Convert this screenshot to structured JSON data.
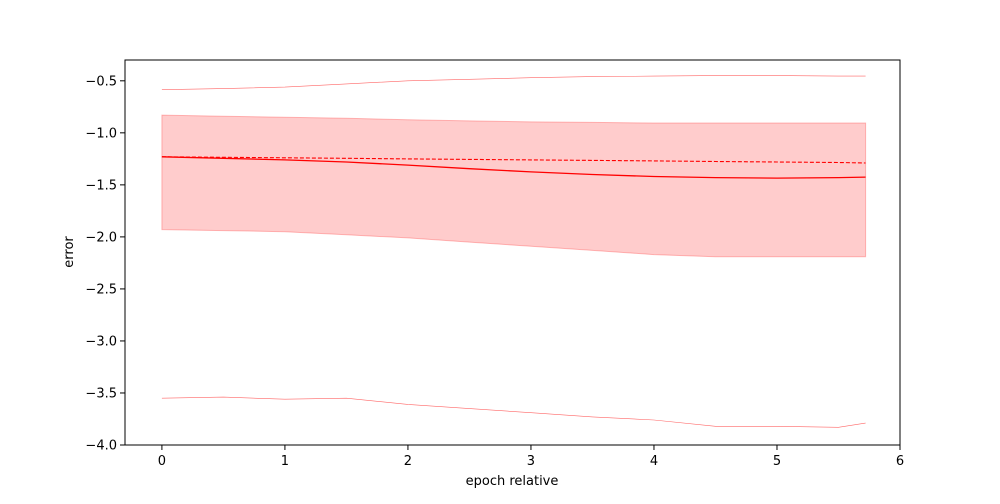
{
  "chart_data": {
    "type": "line",
    "title": "",
    "xlabel": "epoch relative",
    "ylabel": "error",
    "xlim": [
      -0.3,
      6.0
    ],
    "ylim": [
      -4.0,
      -0.3
    ],
    "xticks": [
      0,
      1,
      2,
      3,
      4,
      5,
      6
    ],
    "yticks": [
      -4.0,
      -3.5,
      -3.0,
      -2.5,
      -2.0,
      -1.5,
      -1.0,
      -0.5
    ],
    "xtick_labels": [
      "0",
      "1",
      "2",
      "3",
      "4",
      "5",
      "6"
    ],
    "ytick_labels": [
      "−4.0",
      "−3.5",
      "−3.0",
      "−2.5",
      "−2.0",
      "−1.5",
      "−1.0",
      "−0.5"
    ],
    "grid": false,
    "color": "#ff0000",
    "x": [
      0,
      0.5,
      1.0,
      1.5,
      2.0,
      2.5,
      3.0,
      3.5,
      4.0,
      4.5,
      5.0,
      5.5,
      5.72
    ],
    "series": [
      {
        "role": "mean",
        "style": "solid",
        "values": [
          -1.23,
          -1.245,
          -1.26,
          -1.28,
          -1.31,
          -1.345,
          -1.375,
          -1.4,
          -1.42,
          -1.43,
          -1.435,
          -1.43,
          -1.425
        ]
      },
      {
        "role": "reference",
        "style": "dashed",
        "values": [
          -1.23,
          -1.235,
          -1.24,
          -1.245,
          -1.25,
          -1.255,
          -1.26,
          -1.265,
          -1.27,
          -1.275,
          -1.28,
          -1.285,
          -1.29
        ]
      },
      {
        "role": "max",
        "style": "thin",
        "values": [
          -0.585,
          -0.575,
          -0.56,
          -0.53,
          -0.5,
          -0.485,
          -0.47,
          -0.46,
          -0.455,
          -0.45,
          -0.45,
          -0.455,
          -0.455
        ]
      },
      {
        "role": "min",
        "style": "thin",
        "values": [
          -3.55,
          -3.54,
          -3.56,
          -3.55,
          -3.61,
          -3.65,
          -3.69,
          -3.73,
          -3.76,
          -3.82,
          -3.82,
          -3.83,
          -3.79
        ]
      }
    ],
    "band": {
      "upper": [
        -0.83,
        -0.84,
        -0.85,
        -0.86,
        -0.875,
        -0.885,
        -0.895,
        -0.9,
        -0.905,
        -0.905,
        -0.905,
        -0.905,
        -0.905
      ],
      "lower": [
        -1.93,
        -1.94,
        -1.95,
        -1.98,
        -2.01,
        -2.05,
        -2.09,
        -2.13,
        -2.17,
        -2.19,
        -2.19,
        -2.19,
        -2.19
      ]
    }
  }
}
